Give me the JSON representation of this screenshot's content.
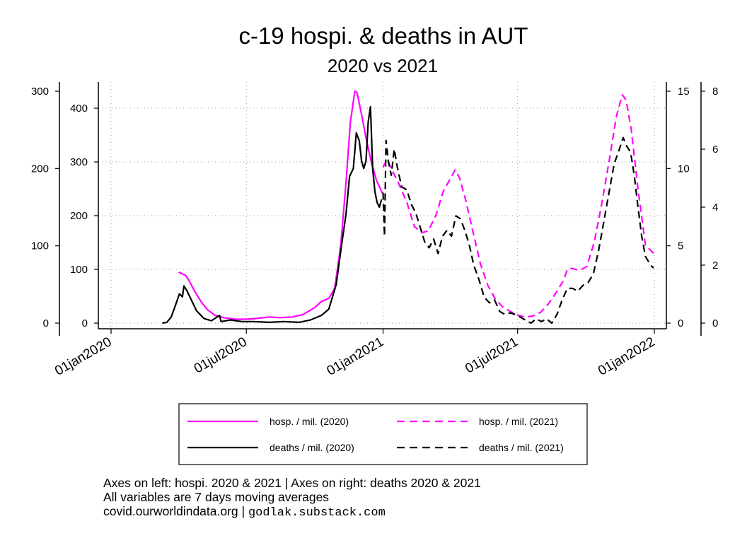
{
  "chart_data": {
    "type": "line",
    "title": "c-19 hospi. & deaths in AUT",
    "subtitle": "2020 vs 2021",
    "x_ticks": [
      "01jan2020",
      "01jul2020",
      "01jan2021",
      "01jul2021",
      "01jan2022"
    ],
    "x_range": [
      "2020-01-01",
      "2022-01-01"
    ],
    "axes": {
      "left_outer": {
        "range": [
          0,
          300
        ],
        "ticks": [
          "0",
          "100",
          "200",
          "300"
        ],
        "series": "hosp. / mil. (2020)"
      },
      "left_inner": {
        "range": [
          0,
          400
        ],
        "ticks": [
          "0",
          "100",
          "200",
          "300",
          "400"
        ],
        "series": "hosp. / mil. (2021)"
      },
      "right_inner": {
        "range": [
          0,
          15
        ],
        "ticks": [
          "0",
          "5",
          "10",
          "15"
        ],
        "series": "deaths / mil. (2020)"
      },
      "right_outer": {
        "range": [
          0,
          8
        ],
        "ticks": [
          "0",
          "2",
          "4",
          "6",
          "8"
        ],
        "series": "deaths / mil. (2021)"
      }
    },
    "grid": true,
    "legend_position": "bottom",
    "series": [
      {
        "name": "hosp. / mil. (2020)",
        "color": "#ff00ff",
        "dash": "solid",
        "axis": "left_outer",
        "points": [
          [
            "2020-04-01",
            66
          ],
          [
            "2020-04-05",
            64
          ],
          [
            "2020-04-10",
            62
          ],
          [
            "2020-04-15",
            55
          ],
          [
            "2020-04-22",
            42
          ],
          [
            "2020-05-01",
            28
          ],
          [
            "2020-05-10",
            17
          ],
          [
            "2020-05-20",
            10
          ],
          [
            "2020-06-01",
            7
          ],
          [
            "2020-06-15",
            5
          ],
          [
            "2020-07-01",
            5
          ],
          [
            "2020-07-15",
            6
          ],
          [
            "2020-08-01",
            8
          ],
          [
            "2020-08-15",
            7
          ],
          [
            "2020-09-01",
            8
          ],
          [
            "2020-09-15",
            11
          ],
          [
            "2020-10-01",
            20
          ],
          [
            "2020-10-10",
            28
          ],
          [
            "2020-10-20",
            32
          ],
          [
            "2020-10-28",
            45
          ],
          [
            "2020-11-05",
            100
          ],
          [
            "2020-11-12",
            180
          ],
          [
            "2020-11-18",
            260
          ],
          [
            "2020-11-24",
            300
          ],
          [
            "2020-11-27",
            298
          ],
          [
            "2020-12-03",
            270
          ],
          [
            "2020-12-10",
            235
          ],
          [
            "2020-12-17",
            205
          ],
          [
            "2020-12-23",
            185
          ],
          [
            "2020-12-31",
            168
          ]
        ]
      },
      {
        "name": "deaths / mil. (2020)",
        "color": "#000000",
        "dash": "solid",
        "axis": "right_inner",
        "points": [
          [
            "2020-03-10",
            0.0
          ],
          [
            "2020-03-16",
            0.05
          ],
          [
            "2020-03-22",
            0.4
          ],
          [
            "2020-03-28",
            1.2
          ],
          [
            "2020-04-02",
            1.9
          ],
          [
            "2020-04-06",
            1.7
          ],
          [
            "2020-04-08",
            2.4
          ],
          [
            "2020-04-12",
            2.1
          ],
          [
            "2020-04-18",
            1.5
          ],
          [
            "2020-04-25",
            0.8
          ],
          [
            "2020-05-05",
            0.3
          ],
          [
            "2020-05-15",
            0.15
          ],
          [
            "2020-05-26",
            0.5
          ],
          [
            "2020-05-28",
            0.1
          ],
          [
            "2020-06-10",
            0.2
          ],
          [
            "2020-06-25",
            0.1
          ],
          [
            "2020-07-10",
            0.1
          ],
          [
            "2020-08-01",
            0.05
          ],
          [
            "2020-08-20",
            0.1
          ],
          [
            "2020-09-10",
            0.05
          ],
          [
            "2020-09-25",
            0.2
          ],
          [
            "2020-10-10",
            0.5
          ],
          [
            "2020-10-20",
            0.9
          ],
          [
            "2020-10-30",
            2.5
          ],
          [
            "2020-11-06",
            5.0
          ],
          [
            "2020-11-12",
            7.0
          ],
          [
            "2020-11-17",
            9.5
          ],
          [
            "2020-11-22",
            10.0
          ],
          [
            "2020-11-26",
            12.3
          ],
          [
            "2020-11-30",
            11.8
          ],
          [
            "2020-12-03",
            10.5
          ],
          [
            "2020-12-06",
            10.0
          ],
          [
            "2020-12-09",
            10.5
          ],
          [
            "2020-12-12",
            13.0
          ],
          [
            "2020-12-15",
            14.0
          ],
          [
            "2020-12-18",
            10.0
          ],
          [
            "2020-12-21",
            8.5
          ],
          [
            "2020-12-24",
            7.8
          ],
          [
            "2020-12-27",
            7.5
          ],
          [
            "2020-12-30",
            8.0
          ]
        ]
      },
      {
        "name": "hosp. / mil. (2021)",
        "color": "#ff00ff",
        "dash": "dashed",
        "axis": "left_inner",
        "points": [
          [
            "2021-01-01",
            290
          ],
          [
            "2021-01-06",
            305
          ],
          [
            "2021-01-13",
            285
          ],
          [
            "2021-01-22",
            260
          ],
          [
            "2021-02-02",
            225
          ],
          [
            "2021-02-12",
            180
          ],
          [
            "2021-02-22",
            168
          ],
          [
            "2021-03-03",
            172
          ],
          [
            "2021-03-13",
            200
          ],
          [
            "2021-03-23",
            245
          ],
          [
            "2021-04-02",
            270
          ],
          [
            "2021-04-08",
            285
          ],
          [
            "2021-04-14",
            270
          ],
          [
            "2021-04-22",
            230
          ],
          [
            "2021-05-02",
            170
          ],
          [
            "2021-05-12",
            110
          ],
          [
            "2021-05-22",
            70
          ],
          [
            "2021-06-01",
            45
          ],
          [
            "2021-06-11",
            30
          ],
          [
            "2021-06-21",
            22
          ],
          [
            "2021-07-01",
            15
          ],
          [
            "2021-07-11",
            11
          ],
          [
            "2021-07-21",
            13
          ],
          [
            "2021-08-01",
            20
          ],
          [
            "2021-08-11",
            35
          ],
          [
            "2021-08-21",
            55
          ],
          [
            "2021-09-01",
            80
          ],
          [
            "2021-09-06",
            100
          ],
          [
            "2021-09-12",
            102
          ],
          [
            "2021-09-22",
            98
          ],
          [
            "2021-10-02",
            105
          ],
          [
            "2021-10-12",
            150
          ],
          [
            "2021-10-22",
            220
          ],
          [
            "2021-11-01",
            300
          ],
          [
            "2021-11-11",
            385
          ],
          [
            "2021-11-19",
            425
          ],
          [
            "2021-11-24",
            415
          ],
          [
            "2021-12-01",
            360
          ],
          [
            "2021-12-10",
            250
          ],
          [
            "2021-12-20",
            145
          ],
          [
            "2021-12-31",
            130
          ]
        ]
      },
      {
        "name": "deaths / mil. (2021)",
        "color": "#000000",
        "dash": "dashed",
        "axis": "right_outer",
        "points": [
          [
            "2021-01-01",
            4.5
          ],
          [
            "2021-01-03",
            3.0
          ],
          [
            "2021-01-05",
            6.3
          ],
          [
            "2021-01-08",
            5.6
          ],
          [
            "2021-01-12",
            5.1
          ],
          [
            "2021-01-16",
            6.0
          ],
          [
            "2021-01-20",
            5.4
          ],
          [
            "2021-01-26",
            4.7
          ],
          [
            "2021-02-02",
            4.6
          ],
          [
            "2021-02-08",
            4.1
          ],
          [
            "2021-02-14",
            3.8
          ],
          [
            "2021-02-20",
            3.3
          ],
          [
            "2021-02-26",
            2.8
          ],
          [
            "2021-03-04",
            2.6
          ],
          [
            "2021-03-10",
            2.9
          ],
          [
            "2021-03-16",
            2.4
          ],
          [
            "2021-03-22",
            3.0
          ],
          [
            "2021-03-28",
            3.2
          ],
          [
            "2021-04-03",
            3.0
          ],
          [
            "2021-04-09",
            3.7
          ],
          [
            "2021-04-15",
            3.6
          ],
          [
            "2021-04-21",
            3.2
          ],
          [
            "2021-04-27",
            2.7
          ],
          [
            "2021-05-03",
            2.0
          ],
          [
            "2021-05-10",
            1.5
          ],
          [
            "2021-05-17",
            0.9
          ],
          [
            "2021-05-24",
            0.7
          ],
          [
            "2021-05-31",
            0.8
          ],
          [
            "2021-06-07",
            0.4
          ],
          [
            "2021-06-14",
            0.3
          ],
          [
            "2021-06-21",
            0.35
          ],
          [
            "2021-06-28",
            0.3
          ],
          [
            "2021-07-05",
            0.2
          ],
          [
            "2021-07-12",
            0.1
          ],
          [
            "2021-07-19",
            0.0
          ],
          [
            "2021-07-26",
            0.15
          ],
          [
            "2021-08-02",
            0.05
          ],
          [
            "2021-08-09",
            0.15
          ],
          [
            "2021-08-16",
            0.0
          ],
          [
            "2021-08-23",
            0.3
          ],
          [
            "2021-08-30",
            0.8
          ],
          [
            "2021-09-06",
            1.2
          ],
          [
            "2021-09-13",
            1.2
          ],
          [
            "2021-09-20",
            1.1
          ],
          [
            "2021-09-27",
            1.3
          ],
          [
            "2021-10-04",
            1.4
          ],
          [
            "2021-10-11",
            1.7
          ],
          [
            "2021-10-18",
            2.5
          ],
          [
            "2021-10-25",
            3.5
          ],
          [
            "2021-11-01",
            4.5
          ],
          [
            "2021-11-08",
            5.5
          ],
          [
            "2021-11-15",
            6.0
          ],
          [
            "2021-11-20",
            6.4
          ],
          [
            "2021-11-25",
            6.1
          ],
          [
            "2021-11-30",
            5.9
          ],
          [
            "2021-12-05",
            5.1
          ],
          [
            "2021-12-10",
            4.0
          ],
          [
            "2021-12-15",
            3.0
          ],
          [
            "2021-12-20",
            2.3
          ],
          [
            "2021-12-27",
            2.0
          ],
          [
            "2021-12-31",
            1.9
          ]
        ]
      }
    ],
    "legend": [
      "hosp. / mil. (2020)",
      "hosp. / mil. (2021)",
      "deaths / mil. (2020)",
      "deaths / mil. (2021)"
    ]
  },
  "notes": {
    "line1": "Axes on left: hospi. 2020 & 2021 | Axes on right: deaths 2020 & 2021",
    "line2": "All variables are 7 days moving averages",
    "line3_source": "covid.ourworldindata.org |",
    "line3_site": "godlak.substack.com"
  }
}
